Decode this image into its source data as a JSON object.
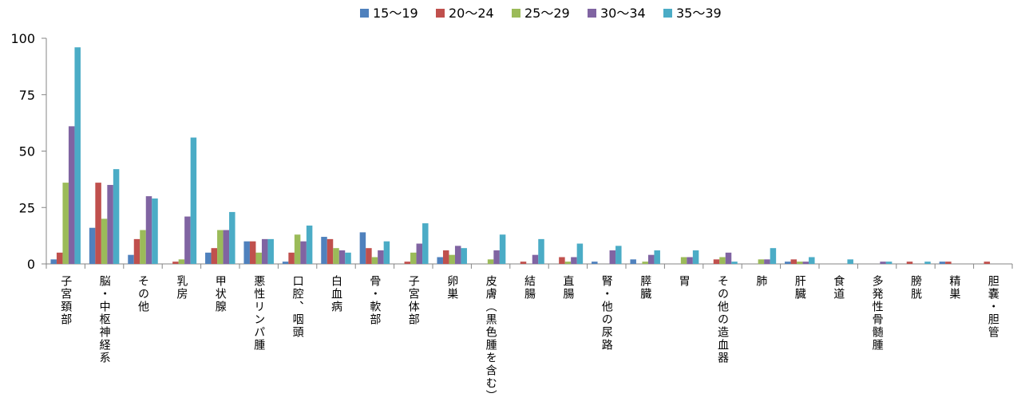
{
  "chart_data": {
    "type": "bar",
    "title": "",
    "xlabel": "",
    "ylabel": "",
    "ylim": [
      0,
      100
    ],
    "yticks": [
      "0",
      "25",
      "50",
      "75",
      "100"
    ],
    "grid": false,
    "legend_position": "top",
    "categories": [
      "子宮頚部",
      "脳・中枢神経系",
      "その他",
      "乳房",
      "甲状腺",
      "悪性リンパ腫",
      "口腔、咽頭",
      "白血病",
      "骨・軟部",
      "子宮体部",
      "卵巣",
      "皮膚（黒色腫を含む）",
      "結腸",
      "直腸",
      "腎・他の尿路",
      "膵臓",
      "胃",
      "その他の造血器",
      "肺",
      "肝臓",
      "食道",
      "多発性骨髄腫",
      "膀胱",
      "精巣",
      "胆嚢・胆管"
    ],
    "series": [
      {
        "name": "15〜19",
        "color": "#4F81BD",
        "values": [
          2,
          16,
          4,
          0,
          5,
          10,
          1,
          12,
          14,
          0,
          3,
          0,
          0,
          0,
          1,
          2,
          0,
          0,
          0,
          1,
          0,
          0,
          0,
          1,
          0
        ]
      },
      {
        "name": "20〜24",
        "color": "#C0504D",
        "values": [
          5,
          36,
          11,
          1,
          7,
          10,
          5,
          11,
          7,
          1,
          6,
          0,
          1,
          3,
          0,
          0,
          0,
          2,
          0,
          2,
          0,
          0,
          1,
          1,
          1
        ]
      },
      {
        "name": "25〜29",
        "color": "#9BBB59",
        "values": [
          36,
          20,
          15,
          2,
          15,
          5,
          13,
          7,
          3,
          5,
          4,
          2,
          0,
          1,
          0,
          1,
          3,
          3,
          2,
          1,
          0,
          0,
          0,
          0,
          0
        ]
      },
      {
        "name": "30〜34",
        "color": "#8064A2",
        "values": [
          61,
          35,
          30,
          21,
          15,
          11,
          10,
          6,
          6,
          9,
          8,
          6,
          4,
          3,
          6,
          4,
          3,
          5,
          2,
          1,
          0,
          1,
          0,
          0,
          0
        ]
      },
      {
        "name": "35〜39",
        "color": "#4BACC6",
        "values": [
          96,
          42,
          29,
          56,
          23,
          11,
          17,
          5,
          10,
          18,
          7,
          13,
          11,
          9,
          8,
          6,
          6,
          1,
          7,
          3,
          2,
          1,
          1,
          0,
          0
        ]
      }
    ]
  }
}
